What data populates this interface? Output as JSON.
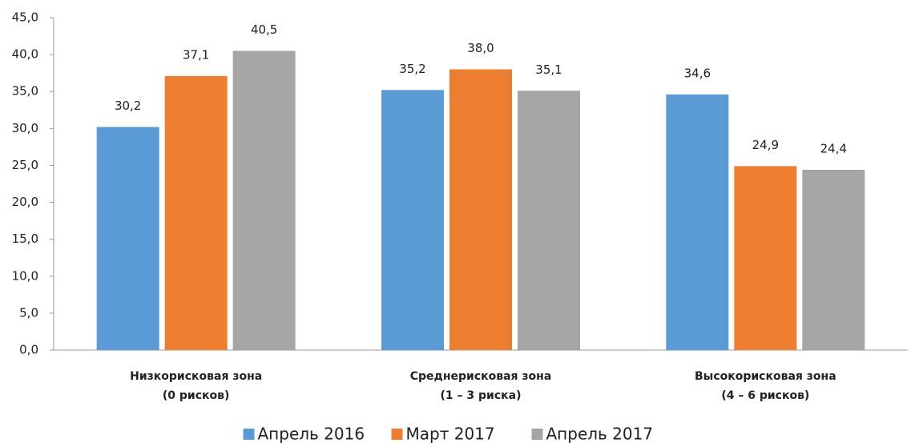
{
  "chart_data": {
    "type": "bar",
    "categories": [
      [
        "Низкорисковая зона",
        "(0 рисков)"
      ],
      [
        "Среднерисковая зона",
        "(1 – 3 риска)"
      ],
      [
        "Высокорисковая зона",
        "(4 – 6 рисков)"
      ]
    ],
    "series": [
      {
        "name": "Апрель 2016",
        "color": "#5b9bd5",
        "values": [
          30.2,
          35.2,
          34.6
        ],
        "value_labels": [
          "30,2",
          "35,2",
          "34,6"
        ]
      },
      {
        "name": "Март 2017",
        "color": "#ed7d31",
        "values": [
          37.1,
          38.0,
          24.9
        ],
        "value_labels": [
          "37,1",
          "38,0",
          "24,9"
        ]
      },
      {
        "name": "Апрель 2017",
        "color": "#a5a5a5",
        "values": [
          40.5,
          35.1,
          24.4
        ],
        "value_labels": [
          "40,5",
          "35,1",
          "24,4"
        ]
      }
    ],
    "ylim": [
      0,
      45
    ],
    "yticks": [
      {
        "value": 0,
        "label": "0,0"
      },
      {
        "value": 5,
        "label": "5,0"
      },
      {
        "value": 10,
        "label": "10,0"
      },
      {
        "value": 15,
        "label": "15,0"
      },
      {
        "value": 20,
        "label": "20,0"
      },
      {
        "value": 25,
        "label": "25,0"
      },
      {
        "value": 30,
        "label": "30,0"
      },
      {
        "value": 35,
        "label": "35,0"
      },
      {
        "value": 40,
        "label": "40,0"
      },
      {
        "value": 45,
        "label": "45,0"
      }
    ],
    "grid": false,
    "legend": "bottom"
  }
}
